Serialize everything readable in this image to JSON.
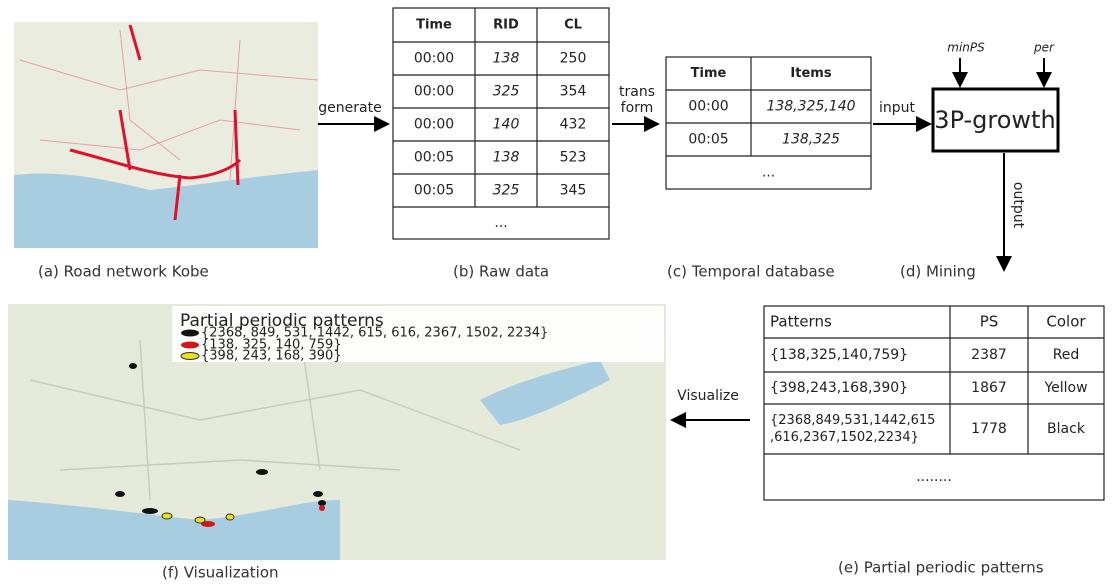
{
  "panels": {
    "road_network": {
      "caption": "(a) Road network Kobe"
    },
    "raw_data": {
      "caption": "(b) Raw data",
      "header": [
        "Time",
        "RID",
        "CL"
      ],
      "rows": [
        [
          "00:00",
          "138",
          "250"
        ],
        [
          "00:00",
          "325",
          "354"
        ],
        [
          "00:00",
          "140",
          "432"
        ],
        [
          "00:05",
          "138",
          "523"
        ],
        [
          "00:05",
          "325",
          "345"
        ]
      ],
      "ellipsis": "..."
    },
    "temporal_database": {
      "caption": "(c) Temporal database",
      "header": [
        "Time",
        "Items"
      ],
      "rows": [
        [
          "00:00",
          "138,325,140"
        ],
        [
          "00:05",
          "138,325"
        ]
      ],
      "ellipsis": "..."
    },
    "mining": {
      "caption": "(d) Mining",
      "algorithm": "3P-growth",
      "inputs": [
        "minPS",
        "per"
      ]
    },
    "patterns": {
      "caption": "(e) Partial periodic patterns",
      "header": [
        "Patterns",
        "PS",
        "Color"
      ],
      "rows": [
        [
          [
            "{138,325,140,759}"
          ],
          "2387",
          "Red"
        ],
        [
          [
            "{398,243,168,390}"
          ],
          "1867",
          "Yellow"
        ],
        [
          [
            "{2368,849,531,1442,615",
            ",616,2367,1502,2234}"
          ],
          "1778",
          "Black"
        ]
      ],
      "ellipsis": "........"
    },
    "visualization": {
      "caption": "(f) Visualization",
      "legend_title": "Partial periodic patterns",
      "legend": [
        "{2368, 849, 531, 1442, 615, 616, 2367, 1502, 2234}",
        "{138, 325, 140, 759}",
        "{398, 243, 168, 390}"
      ]
    }
  },
  "arrows": {
    "generate": "generate",
    "transform": [
      "trans",
      "form"
    ],
    "input": "input",
    "output": "output",
    "visualize": "Visualize"
  }
}
